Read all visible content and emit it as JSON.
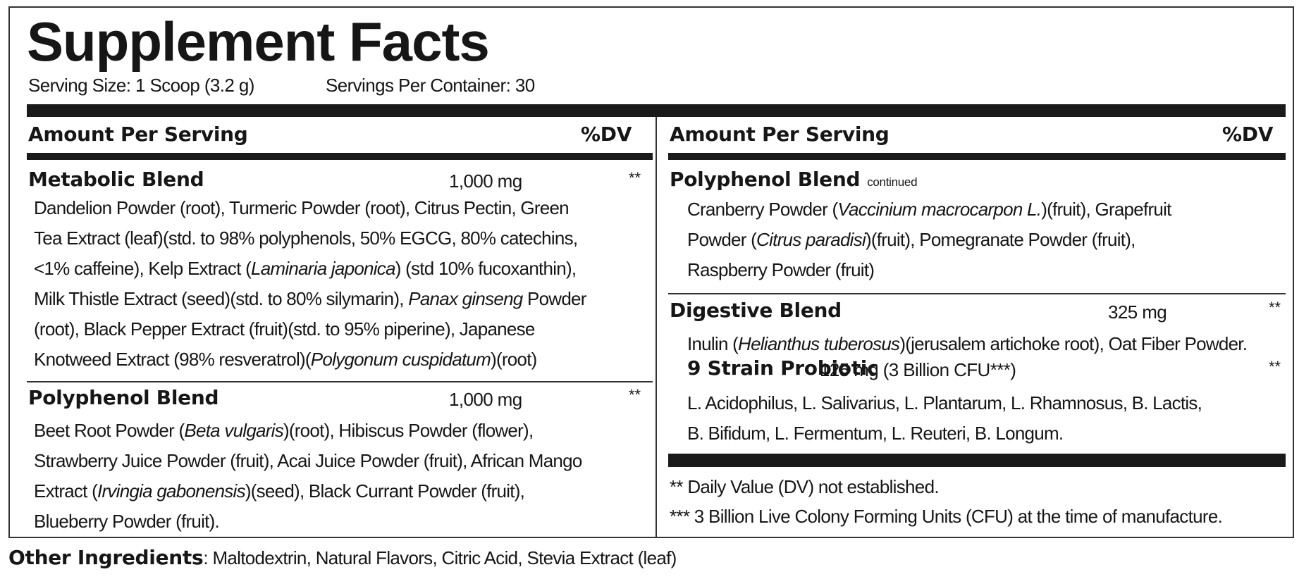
{
  "title": "Supplement Facts",
  "serving_size": "Serving Size: 1 Scoop (3.2 g)",
  "servings_per_container": "Servings Per Container: 30",
  "header": {
    "amount": "Amount Per Serving",
    "dv": "%DV"
  },
  "left": {
    "metabolic": {
      "name": "Metabolic Blend",
      "amount": "1,000 mg",
      "dv": "**",
      "lines": [
        [
          {
            "t": "Dandelion Powder (root), Turmeric Powder (root), Citrus Pectin, Green"
          }
        ],
        [
          {
            "t": "Tea Extract (leaf)(std. to 98% polyphenols, 50% EGCG,  80% catechins,"
          }
        ],
        [
          {
            "t": "<1% caffeine), Kelp Extract ("
          },
          {
            "t": "Laminaria japonica",
            "i": true
          },
          {
            "t": ") (std 10% fucoxanthin),"
          }
        ],
        [
          {
            "t": "Milk Thistle Extract (seed)(std. to 80% silymarin), "
          },
          {
            "t": "Panax ginseng",
            "i": true
          },
          {
            "t": " Powder"
          }
        ],
        [
          {
            "t": "(root), Black Pepper Extract (fruit)(std. to 95% piperine), Japanese"
          }
        ],
        [
          {
            "t": "Knotweed Extract (98% resveratrol)("
          },
          {
            "t": "Polygonum cuspidatum",
            "i": true
          },
          {
            "t": ")(root)"
          }
        ]
      ]
    },
    "polyphenol": {
      "name": "Polyphenol Blend",
      "amount": "1,000 mg",
      "dv": "**",
      "lines": [
        [
          {
            "t": "Beet Root Powder ("
          },
          {
            "t": "Beta vulgaris",
            "i": true
          },
          {
            "t": ")(root), Hibiscus Powder (flower),"
          }
        ],
        [
          {
            "t": "Strawberry Juice Powder (fruit), Acai Juice Powder (fruit), African Mango"
          }
        ],
        [
          {
            "t": "Extract ("
          },
          {
            "t": "Irvingia gabonensis",
            "i": true
          },
          {
            "t": ")(seed), Black Currant Powder (fruit),"
          }
        ],
        [
          {
            "t": "Blueberry Powder (fruit)."
          }
        ]
      ]
    }
  },
  "right": {
    "polyphenol_cont": {
      "name": "Polyphenol Blend",
      "note": "continued",
      "lines": [
        [
          {
            "t": "Cranberry Powder ("
          },
          {
            "t": "Vaccinium macrocarpon L.",
            "i": true
          },
          {
            "t": ")(fruit), Grapefruit"
          }
        ],
        [
          {
            "t": "Powder ("
          },
          {
            "t": "Citrus paradisi",
            "i": true
          },
          {
            "t": ")(fruit), Pomegranate Powder (fruit),"
          }
        ],
        [
          {
            "t": "Raspberry Powder (fruit)"
          }
        ]
      ]
    },
    "digestive": {
      "name": "Digestive Blend",
      "amount": "325 mg",
      "dv": "**",
      "lines": [
        [
          {
            "t": "Inulin ("
          },
          {
            "t": "Helianthus tuberosus",
            "i": true
          },
          {
            "t": ")(jerusalem artichoke root), Oat Fiber Powder."
          }
        ]
      ]
    },
    "probiotic": {
      "name": "9 Strain Probiotic",
      "amount": "125 mg (3 Billion CFU***)",
      "dv": "**",
      "lines": [
        [
          {
            "t": "L. Acidophilus, L. Salivarius, L. Plantarum, L. Rhamnosus, B. Lactis,"
          }
        ],
        [
          {
            "t": "B. Bifidum, L. Fermentum, L. Reuteri, B. Longum."
          }
        ]
      ]
    },
    "footnotes": [
      "** Daily Value (DV) not established.",
      "*** 3 Billion Live Colony Forming Units (CFU) at the time of manufacture."
    ]
  },
  "other": {
    "label": "Other Ingredients",
    "text": ": Maltodextrin, Natural Flavors, Citric Acid, Stevia Extract (leaf)"
  }
}
